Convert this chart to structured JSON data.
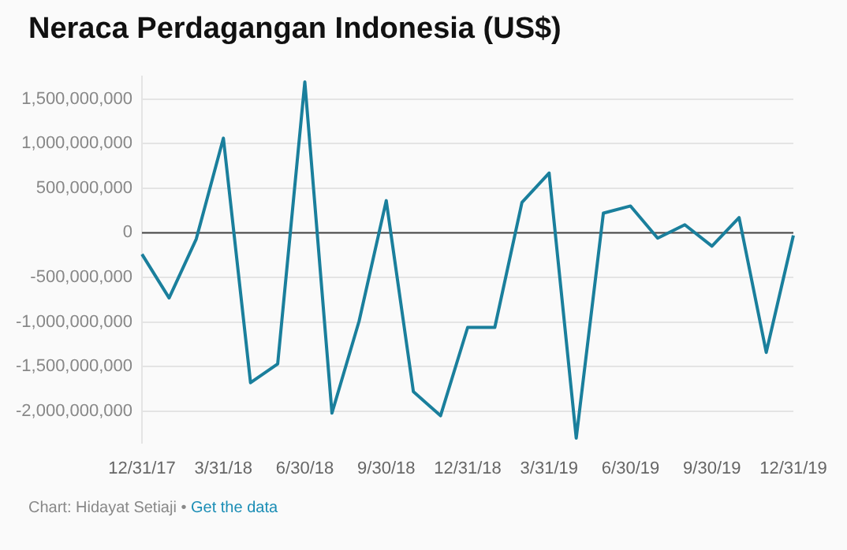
{
  "chart_data": {
    "type": "line",
    "title": "Neraca Perdagangan Indonesia (US$)",
    "categories": [
      "12/31/17",
      null,
      null,
      "3/31/18",
      null,
      null,
      "6/30/18",
      null,
      null,
      "9/30/18",
      null,
      null,
      "12/31/18",
      null,
      null,
      "3/31/19",
      null,
      null,
      "6/30/19",
      null,
      null,
      "9/30/19",
      null,
      null,
      "12/31/19"
    ],
    "series": [
      {
        "color": "#1a7f9c",
        "values": [
          -240000000,
          -730000000,
          -70000000,
          1060000000,
          -1680000000,
          -1470000000,
          1690000000,
          -2020000000,
          -990000000,
          360000000,
          -1780000000,
          -2050000000,
          -1060000000,
          -1060000000,
          340000000,
          670000000,
          -2300000000,
          220000000,
          300000000,
          -60000000,
          90000000,
          -150000000,
          170000000,
          -1340000000,
          -30000000
        ]
      }
    ],
    "ylim": [
      -2350000000,
      1750000000
    ],
    "yticks": [
      {
        "value": -2000000000,
        "label": "-2,000,000,000"
      },
      {
        "value": -1500000000,
        "label": "-1,500,000,000"
      },
      {
        "value": -1000000000,
        "label": "-1,000,000,000"
      },
      {
        "value": -500000000,
        "label": "-500,000,000"
      },
      0,
      {
        "value": 500000000,
        "label": "500,000,000"
      },
      {
        "value": 1000000000,
        "label": "1,000,000,000"
      },
      {
        "value": 1500000000,
        "label": "1,500,000,000"
      }
    ],
    "grid": "y",
    "legend": false,
    "marker": "none",
    "line_style": "solid",
    "ref_lines": [
      {
        "axis": "y",
        "value": 0,
        "color": "#444444"
      }
    ],
    "annotations": [
      "Chart: Hidayat Setiaji •",
      "Get the data"
    ]
  }
}
